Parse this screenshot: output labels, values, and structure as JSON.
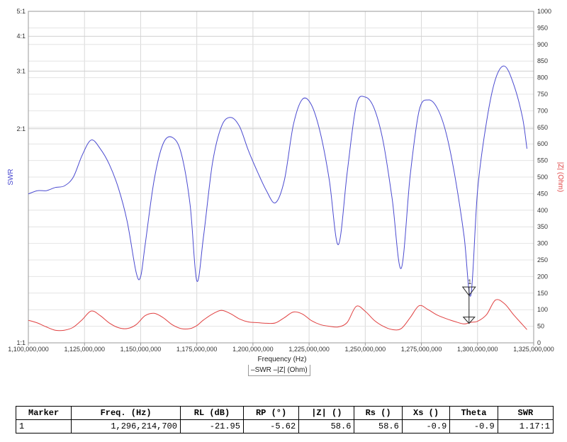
{
  "chart_data": {
    "type": "line",
    "xlabel": "Frequency (Hz)",
    "ylabel_left": "SWR",
    "ylabel_right": "|Z| (Ohm)",
    "x_ticks": [
      1100000000,
      1125000000,
      1150000000,
      1175000000,
      1200000000,
      1225000000,
      1250000000,
      1275000000,
      1300000000,
      1325000000
    ],
    "x_tick_labels": [
      "1,100,000,000",
      "1,125,000,000",
      "1,150,000,000",
      "1,175,000,000",
      "1,200,000,000",
      "1,225,000,000",
      "1,250,000,000",
      "1,275,000,000",
      "1,300,000,000",
      "1,325,000,000"
    ],
    "xlim": [
      1100000000,
      1325000000
    ],
    "y_left_ticks": [
      1.1,
      2.1,
      3.1,
      4.1,
      5.1
    ],
    "y_left_tick_labels": [
      "1:1",
      "2:1",
      "3:1",
      "4:1",
      "5:1"
    ],
    "y_left_scale": "log",
    "y_left_lim": [
      1.1,
      5.1
    ],
    "y_right_ticks": [
      0,
      50,
      100,
      150,
      200,
      250,
      300,
      350,
      400,
      450,
      500,
      550,
      600,
      650,
      700,
      750,
      800,
      850,
      900,
      950,
      1000
    ],
    "y_right_lim": [
      0,
      1000
    ],
    "grid": true,
    "legend": {
      "placement": "bottom-center",
      "items": [
        "SWR",
        "|Z| (Ohm)"
      ]
    },
    "series": [
      {
        "name": "SWR",
        "color": "#4a4ad0",
        "axis": "left",
        "x": [
          1100000000,
          1104000000,
          1108000000,
          1112000000,
          1116000000,
          1120000000,
          1124000000,
          1128000000,
          1132000000,
          1136000000,
          1140000000,
          1144000000,
          1148000000,
          1150000000,
          1152000000,
          1156000000,
          1160000000,
          1164000000,
          1168000000,
          1172000000,
          1175000000,
          1178000000,
          1182000000,
          1186000000,
          1190000000,
          1194000000,
          1198000000,
          1202000000,
          1206000000,
          1210000000,
          1214000000,
          1218000000,
          1222000000,
          1226000000,
          1230000000,
          1234000000,
          1238000000,
          1242000000,
          1246000000,
          1250000000,
          1254000000,
          1258000000,
          1262000000,
          1266000000,
          1270000000,
          1274000000,
          1278000000,
          1282000000,
          1286000000,
          1290000000,
          1294000000,
          1297000000,
          1300000000,
          1304000000,
          1308000000,
          1312000000,
          1316000000,
          1320000000,
          1322000000
        ],
        "values": [
          1.53,
          1.55,
          1.55,
          1.57,
          1.58,
          1.64,
          1.82,
          1.97,
          1.88,
          1.74,
          1.57,
          1.39,
          1.22,
          1.21,
          1.3,
          1.62,
          1.93,
          2.0,
          1.84,
          1.47,
          1.2,
          1.33,
          1.75,
          2.13,
          2.25,
          2.13,
          1.86,
          1.68,
          1.55,
          1.48,
          1.62,
          2.15,
          2.53,
          2.44,
          2.05,
          1.62,
          1.3,
          1.68,
          2.43,
          2.57,
          2.38,
          1.95,
          1.5,
          1.23,
          1.65,
          2.35,
          2.52,
          2.39,
          2.05,
          1.64,
          1.33,
          1.17,
          1.55,
          2.19,
          2.92,
          3.22,
          2.82,
          2.25,
          1.88
        ]
      },
      {
        "name": "|Z| (Ohm)",
        "color": "#e04040",
        "axis": "right",
        "x": [
          1100000000,
          1104000000,
          1108000000,
          1112000000,
          1116000000,
          1120000000,
          1124000000,
          1128000000,
          1132000000,
          1136000000,
          1140000000,
          1144000000,
          1148000000,
          1152000000,
          1156000000,
          1160000000,
          1164000000,
          1168000000,
          1172000000,
          1175000000,
          1178000000,
          1182000000,
          1186000000,
          1190000000,
          1194000000,
          1198000000,
          1202000000,
          1206000000,
          1210000000,
          1214000000,
          1218000000,
          1222000000,
          1226000000,
          1230000000,
          1234000000,
          1238000000,
          1242000000,
          1246000000,
          1250000000,
          1254000000,
          1258000000,
          1262000000,
          1266000000,
          1270000000,
          1274000000,
          1278000000,
          1282000000,
          1286000000,
          1290000000,
          1294000000,
          1297000000,
          1300000000,
          1304000000,
          1308000000,
          1312000000,
          1316000000,
          1320000000,
          1322000000
        ],
        "values": [
          68,
          60,
          48,
          38,
          38,
          47,
          70,
          96,
          82,
          60,
          46,
          43,
          55,
          82,
          89,
          76,
          55,
          43,
          43,
          52,
          69,
          87,
          98,
          88,
          72,
          63,
          61,
          59,
          60,
          76,
          93,
          87,
          67,
          55,
          50,
          48,
          62,
          110,
          95,
          68,
          50,
          40,
          43,
          76,
          112,
          100,
          84,
          73,
          64,
          57,
          62,
          65,
          85,
          129,
          118,
          85,
          55,
          40
        ]
      }
    ],
    "marker": {
      "label": "1",
      "x": 1296214700,
      "swr": 1.17,
      "z": 58.6
    }
  },
  "marker_table": {
    "headers": [
      "Marker",
      "Freq. (Hz)",
      "RL (dB)",
      "RP (°)",
      "|Z| ()",
      "Rs ()",
      "Xs ()",
      "Theta",
      "SWR"
    ],
    "rows": [
      [
        "1",
        "1,296,214,700",
        "-21.95",
        "-5.62",
        "58.6",
        "58.6",
        "-0.9",
        "-0.9",
        "1.17:1"
      ]
    ]
  },
  "legend_text": {
    "swr": "SWR",
    "z": "|Z| (Ohm)"
  }
}
